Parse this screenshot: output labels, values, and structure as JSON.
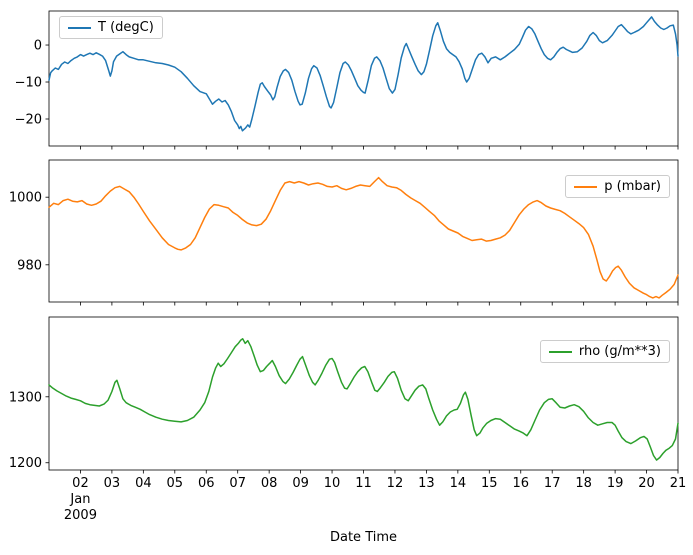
{
  "figure": {
    "xlabel": "Date Time",
    "background": "#ffffff",
    "xlim": [
      1,
      21
    ],
    "xticks": [
      2,
      3,
      4,
      5,
      6,
      7,
      8,
      9,
      10,
      11,
      12,
      13,
      14,
      15,
      16,
      17,
      18,
      19,
      20,
      21
    ],
    "xtick_labels": [
      "02",
      "03",
      "04",
      "05",
      "06",
      "07",
      "08",
      "09",
      "10",
      "11",
      "12",
      "13",
      "14",
      "15",
      "16",
      "17",
      "18",
      "19",
      "20",
      "21"
    ],
    "x_offset_text": [
      "Jan",
      "2009"
    ],
    "grid": false
  },
  "chart_data": [
    {
      "type": "line",
      "key": "temperature",
      "series_name": "T (degC)",
      "color": "#1f77b4",
      "legend_position": "upper-left",
      "ylim": [
        -27.3,
        9.2
      ],
      "ytick_values": [
        0,
        -10,
        -20
      ],
      "ytick_labels": [
        "0",
        "−10",
        "−20"
      ],
      "x": [
        1,
        1.05,
        1.1,
        1.2,
        1.3,
        1.4,
        1.5,
        1.6,
        1.7,
        1.8,
        1.9,
        2,
        2.1,
        2.2,
        2.3,
        2.4,
        2.5,
        2.6,
        2.7,
        2.8,
        2.9,
        2.95,
        3,
        3.05,
        3.15,
        3.25,
        3.35,
        3.45,
        3.55,
        3.7,
        3.85,
        4,
        4.2,
        4.4,
        4.6,
        4.8,
        5,
        5.2,
        5.4,
        5.6,
        5.8,
        6,
        6.1,
        6.2,
        6.3,
        6.4,
        6.5,
        6.6,
        6.7,
        6.8,
        6.9,
        7,
        7.05,
        7.1,
        7.15,
        7.25,
        7.32,
        7.38,
        7.45,
        7.55,
        7.65,
        7.72,
        7.78,
        7.85,
        7.95,
        8.05,
        8.12,
        8.18,
        8.25,
        8.35,
        8.45,
        8.52,
        8.62,
        8.72,
        8.82,
        8.92,
        8.98,
        9.05,
        9.15,
        9.25,
        9.35,
        9.42,
        9.52,
        9.62,
        9.72,
        9.82,
        9.92,
        9.97,
        10.05,
        10.15,
        10.25,
        10.35,
        10.42,
        10.52,
        10.62,
        10.72,
        10.82,
        10.92,
        11,
        11.05,
        11.15,
        11.25,
        11.35,
        11.42,
        11.52,
        11.62,
        11.72,
        11.82,
        11.92,
        12,
        12.1,
        12.2,
        12.3,
        12.36,
        12.44,
        12.54,
        12.64,
        12.74,
        12.84,
        12.92,
        13,
        13.1,
        13.2,
        13.3,
        13.36,
        13.44,
        13.54,
        13.64,
        13.74,
        13.84,
        13.94,
        14.04,
        14.14,
        14.22,
        14.28,
        14.36,
        14.46,
        14.56,
        14.66,
        14.76,
        14.86,
        14.96,
        15.06,
        15.2,
        15.35,
        15.5,
        15.65,
        15.8,
        15.95,
        16.05,
        16.15,
        16.25,
        16.35,
        16.45,
        16.55,
        16.65,
        16.75,
        16.85,
        16.95,
        17.05,
        17.15,
        17.25,
        17.35,
        17.45,
        17.55,
        17.65,
        17.8,
        17.95,
        18.1,
        18.2,
        18.3,
        18.4,
        18.5,
        18.6,
        18.75,
        18.9,
        19,
        19.1,
        19.2,
        19.3,
        19.4,
        19.5,
        19.6,
        19.75,
        19.9,
        20,
        20.1,
        20.16,
        20.25,
        20.35,
        20.45,
        20.55,
        20.65,
        20.75,
        20.85,
        20.92,
        20.97,
        21
      ],
      "y": [
        -9.5,
        -7.5,
        -7,
        -6.2,
        -6.6,
        -5.2,
        -4.6,
        -5,
        -4.2,
        -3.6,
        -3.2,
        -2.6,
        -3,
        -2.6,
        -2.2,
        -2.6,
        -2.1,
        -2.5,
        -3,
        -4.2,
        -7,
        -8.4,
        -7,
        -4.5,
        -3,
        -2.4,
        -1.8,
        -2.6,
        -3.2,
        -3.6,
        -4,
        -4,
        -4.4,
        -4.8,
        -5,
        -5.4,
        -6,
        -7.2,
        -9,
        -11,
        -12.6,
        -13.2,
        -14.6,
        -16,
        -15.2,
        -14.6,
        -15.4,
        -15,
        -16.2,
        -18,
        -20.4,
        -21.6,
        -22.6,
        -22,
        -23.2,
        -22.4,
        -21.6,
        -22.2,
        -20,
        -16.5,
        -12.8,
        -10.6,
        -10.2,
        -11.2,
        -12.4,
        -13.5,
        -14.8,
        -14,
        -11.5,
        -8.5,
        -7,
        -6.6,
        -7.4,
        -9.5,
        -12.5,
        -15.2,
        -16.2,
        -16,
        -13,
        -9,
        -6.4,
        -5.6,
        -6.2,
        -8.2,
        -11,
        -14,
        -16.6,
        -17,
        -15.5,
        -11.5,
        -7.5,
        -5,
        -4.6,
        -5.4,
        -7,
        -9,
        -11,
        -12.2,
        -12.8,
        -13,
        -9.5,
        -5.5,
        -3.6,
        -3.2,
        -4.2,
        -6.2,
        -9,
        -11.8,
        -13,
        -12,
        -8,
        -3.5,
        -0.5,
        0.4,
        -1.2,
        -3.2,
        -5.2,
        -7,
        -8,
        -7.2,
        -5.2,
        -1.5,
        2.5,
        5.2,
        6,
        4,
        1,
        -1,
        -2,
        -2.6,
        -3.2,
        -4.5,
        -6.5,
        -9,
        -10,
        -9,
        -6.5,
        -4,
        -2.6,
        -2.2,
        -3.2,
        -4.8,
        -3.6,
        -3.2,
        -4,
        -3.2,
        -2.2,
        -1.2,
        0.2,
        2,
        4,
        5,
        4.4,
        3,
        1,
        -1,
        -2.6,
        -3.6,
        -4,
        -3.2,
        -2,
        -1,
        -0.6,
        -1.2,
        -1.6,
        -2,
        -1.8,
        -0.8,
        1,
        2.6,
        3.4,
        2.6,
        1.2,
        0.6,
        1.2,
        2.6,
        3.8,
        5,
        5.5,
        4.6,
        3.6,
        3,
        3.4,
        4,
        5,
        6,
        7,
        7.6,
        6.4,
        5.4,
        4.6,
        4.2,
        4.6,
        5.2,
        5.4,
        3,
        0,
        -3
      ]
    },
    {
      "type": "line",
      "key": "pressure",
      "series_name": "p (mbar)",
      "color": "#ff7f0e",
      "legend_position": "upper-right",
      "ylim": [
        969,
        1011
      ],
      "ytick_values": [
        1000,
        980
      ],
      "ytick_labels": [
        "1000",
        "980"
      ],
      "x": [
        1,
        1.15,
        1.3,
        1.45,
        1.6,
        1.75,
        1.9,
        2.05,
        2.2,
        2.35,
        2.5,
        2.65,
        2.8,
        2.95,
        3.1,
        3.25,
        3.4,
        3.55,
        3.7,
        3.85,
        4,
        4.2,
        4.4,
        4.6,
        4.8,
        5,
        5.1,
        5.2,
        5.35,
        5.5,
        5.65,
        5.8,
        5.95,
        6.1,
        6.25,
        6.4,
        6.55,
        6.7,
        6.85,
        7,
        7.15,
        7.3,
        7.45,
        7.6,
        7.75,
        7.9,
        8.05,
        8.2,
        8.35,
        8.5,
        8.65,
        8.8,
        8.95,
        9.1,
        9.25,
        9.4,
        9.55,
        9.7,
        9.85,
        10,
        10.15,
        10.3,
        10.45,
        10.6,
        10.75,
        10.9,
        11.05,
        11.2,
        11.35,
        11.48,
        11.6,
        11.75,
        11.9,
        12.05,
        12.2,
        12.35,
        12.5,
        12.65,
        12.8,
        12.95,
        13.1,
        13.25,
        13.4,
        13.55,
        13.7,
        13.85,
        14,
        14.15,
        14.3,
        14.45,
        14.6,
        14.75,
        14.9,
        15.05,
        15.2,
        15.35,
        15.5,
        15.65,
        15.8,
        15.95,
        16.1,
        16.25,
        16.4,
        16.52,
        16.65,
        16.8,
        16.95,
        17.1,
        17.25,
        17.4,
        17.55,
        17.7,
        17.85,
        18,
        18.15,
        18.3,
        18.42,
        18.52,
        18.62,
        18.72,
        18.82,
        18.92,
        19.02,
        19.1,
        19.2,
        19.32,
        19.45,
        19.6,
        19.75,
        19.9,
        20,
        20.1,
        20.2,
        20.3,
        20.4,
        20.5,
        20.62,
        20.75,
        20.88,
        21
      ],
      "y": [
        997,
        998.2,
        997.8,
        999,
        999.4,
        998.8,
        998.6,
        999,
        998,
        997.6,
        998,
        998.8,
        1000.4,
        1001.8,
        1002.8,
        1003.2,
        1002.4,
        1001.6,
        1000,
        998,
        995.8,
        993,
        990.5,
        988,
        986,
        985,
        984.6,
        984.4,
        985,
        986,
        988,
        991,
        994,
        996.5,
        997.8,
        997.6,
        997.2,
        996.8,
        995.5,
        994.6,
        993.4,
        992.4,
        991.8,
        991.6,
        992,
        993.5,
        996,
        999,
        1002,
        1004.2,
        1004.6,
        1004.2,
        1004.6,
        1004.2,
        1003.6,
        1004,
        1004.2,
        1003.8,
        1003.2,
        1003,
        1003.4,
        1002.6,
        1002.2,
        1002.6,
        1003.2,
        1003.6,
        1003.4,
        1003.2,
        1004.6,
        1005.8,
        1004.6,
        1003.4,
        1003,
        1002.8,
        1002,
        1000.8,
        999.8,
        999,
        998.2,
        997,
        995.8,
        994.6,
        993,
        991.8,
        990.6,
        990,
        989.4,
        988.4,
        987.8,
        987.2,
        987.4,
        987.6,
        987,
        987.2,
        987.6,
        988,
        988.8,
        990.2,
        992.5,
        994.8,
        996.5,
        997.8,
        998.6,
        999,
        998.4,
        997.4,
        996.8,
        996.4,
        996,
        995.2,
        994.2,
        993.2,
        992.2,
        991,
        989,
        985.5,
        981.5,
        978,
        975.8,
        975.2,
        976.5,
        978.2,
        979.2,
        979.6,
        978.4,
        976.4,
        974.6,
        973.2,
        972.4,
        971.6,
        971.2,
        970.6,
        970.2,
        970.6,
        970.2,
        971,
        971.8,
        972.8,
        974.2,
        977
      ]
    },
    {
      "type": "line",
      "key": "density",
      "series_name": "rho (g/m**3)",
      "color": "#2ca02c",
      "legend_position": "upper-right",
      "ylim": [
        1189,
        1421
      ],
      "ytick_values": [
        1300,
        1200
      ],
      "ytick_labels": [
        "1300",
        "1200"
      ],
      "x": [
        1,
        1.1,
        1.25,
        1.4,
        1.55,
        1.7,
        1.85,
        2,
        2.15,
        2.3,
        2.45,
        2.6,
        2.75,
        2.88,
        3,
        3.1,
        3.16,
        3.25,
        3.35,
        3.45,
        3.6,
        3.75,
        3.9,
        4.05,
        4.2,
        4.4,
        4.6,
        4.8,
        5,
        5.2,
        5.4,
        5.6,
        5.8,
        5.95,
        6.08,
        6.2,
        6.3,
        6.38,
        6.46,
        6.56,
        6.68,
        6.8,
        6.92,
        7.02,
        7.1,
        7.16,
        7.24,
        7.32,
        7.42,
        7.52,
        7.62,
        7.72,
        7.82,
        7.92,
        8.02,
        8.1,
        8.2,
        8.32,
        8.44,
        8.52,
        8.64,
        8.76,
        8.88,
        8.98,
        9.06,
        9.16,
        9.28,
        9.38,
        9.46,
        9.56,
        9.68,
        9.8,
        9.92,
        10,
        10.08,
        10.18,
        10.3,
        10.4,
        10.48,
        10.58,
        10.7,
        10.82,
        10.94,
        11.04,
        11.14,
        11.26,
        11.36,
        11.44,
        11.54,
        11.66,
        11.78,
        11.9,
        11.98,
        12.08,
        12.2,
        12.32,
        12.42,
        12.52,
        12.64,
        12.76,
        12.88,
        12.98,
        13.08,
        13.2,
        13.32,
        13.42,
        13.52,
        13.64,
        13.76,
        13.88,
        13.98,
        14.08,
        14.18,
        14.24,
        14.32,
        14.42,
        14.52,
        14.6,
        14.7,
        14.8,
        14.92,
        15.05,
        15.2,
        15.35,
        15.5,
        15.65,
        15.8,
        15.95,
        16.08,
        16.2,
        16.32,
        16.45,
        16.6,
        16.75,
        16.88,
        17,
        17.12,
        17.25,
        17.4,
        17.55,
        17.7,
        17.85,
        18,
        18.15,
        18.3,
        18.45,
        18.6,
        18.75,
        18.9,
        19,
        19.1,
        19.22,
        19.35,
        19.5,
        19.65,
        19.8,
        19.92,
        20.02,
        20.12,
        20.22,
        20.32,
        20.42,
        20.52,
        20.62,
        20.72,
        20.82,
        20.92,
        21
      ],
      "y": [
        1318,
        1314,
        1309,
        1305,
        1301,
        1298,
        1296,
        1294,
        1290,
        1288,
        1287,
        1286,
        1289,
        1295,
        1308,
        1322,
        1325,
        1312,
        1297,
        1291,
        1287,
        1284,
        1281,
        1277,
        1273,
        1269,
        1266,
        1264,
        1263,
        1262,
        1264,
        1269,
        1280,
        1291,
        1308,
        1330,
        1344,
        1351,
        1346,
        1350,
        1358,
        1367,
        1376,
        1381,
        1386,
        1388,
        1381,
        1385,
        1376,
        1362,
        1348,
        1338,
        1340,
        1346,
        1351,
        1355,
        1346,
        1332,
        1323,
        1320,
        1327,
        1337,
        1348,
        1357,
        1361,
        1348,
        1332,
        1322,
        1318,
        1325,
        1336,
        1348,
        1357,
        1358,
        1352,
        1338,
        1322,
        1313,
        1312,
        1320,
        1330,
        1338,
        1344,
        1346,
        1338,
        1322,
        1310,
        1308,
        1314,
        1322,
        1331,
        1337,
        1338,
        1328,
        1310,
        1297,
        1294,
        1301,
        1310,
        1316,
        1318,
        1312,
        1297,
        1280,
        1266,
        1257,
        1262,
        1271,
        1277,
        1280,
        1281,
        1290,
        1303,
        1307,
        1296,
        1272,
        1250,
        1241,
        1245,
        1253,
        1260,
        1264,
        1267,
        1266,
        1261,
        1256,
        1251,
        1248,
        1245,
        1241,
        1250,
        1264,
        1280,
        1291,
        1296,
        1297,
        1291,
        1284,
        1283,
        1286,
        1288,
        1285,
        1278,
        1268,
        1261,
        1257,
        1259,
        1261,
        1261,
        1257,
        1248,
        1238,
        1232,
        1229,
        1233,
        1238,
        1240,
        1236,
        1224,
        1211,
        1204,
        1208,
        1214,
        1219,
        1222,
        1226,
        1236,
        1260
      ]
    }
  ]
}
